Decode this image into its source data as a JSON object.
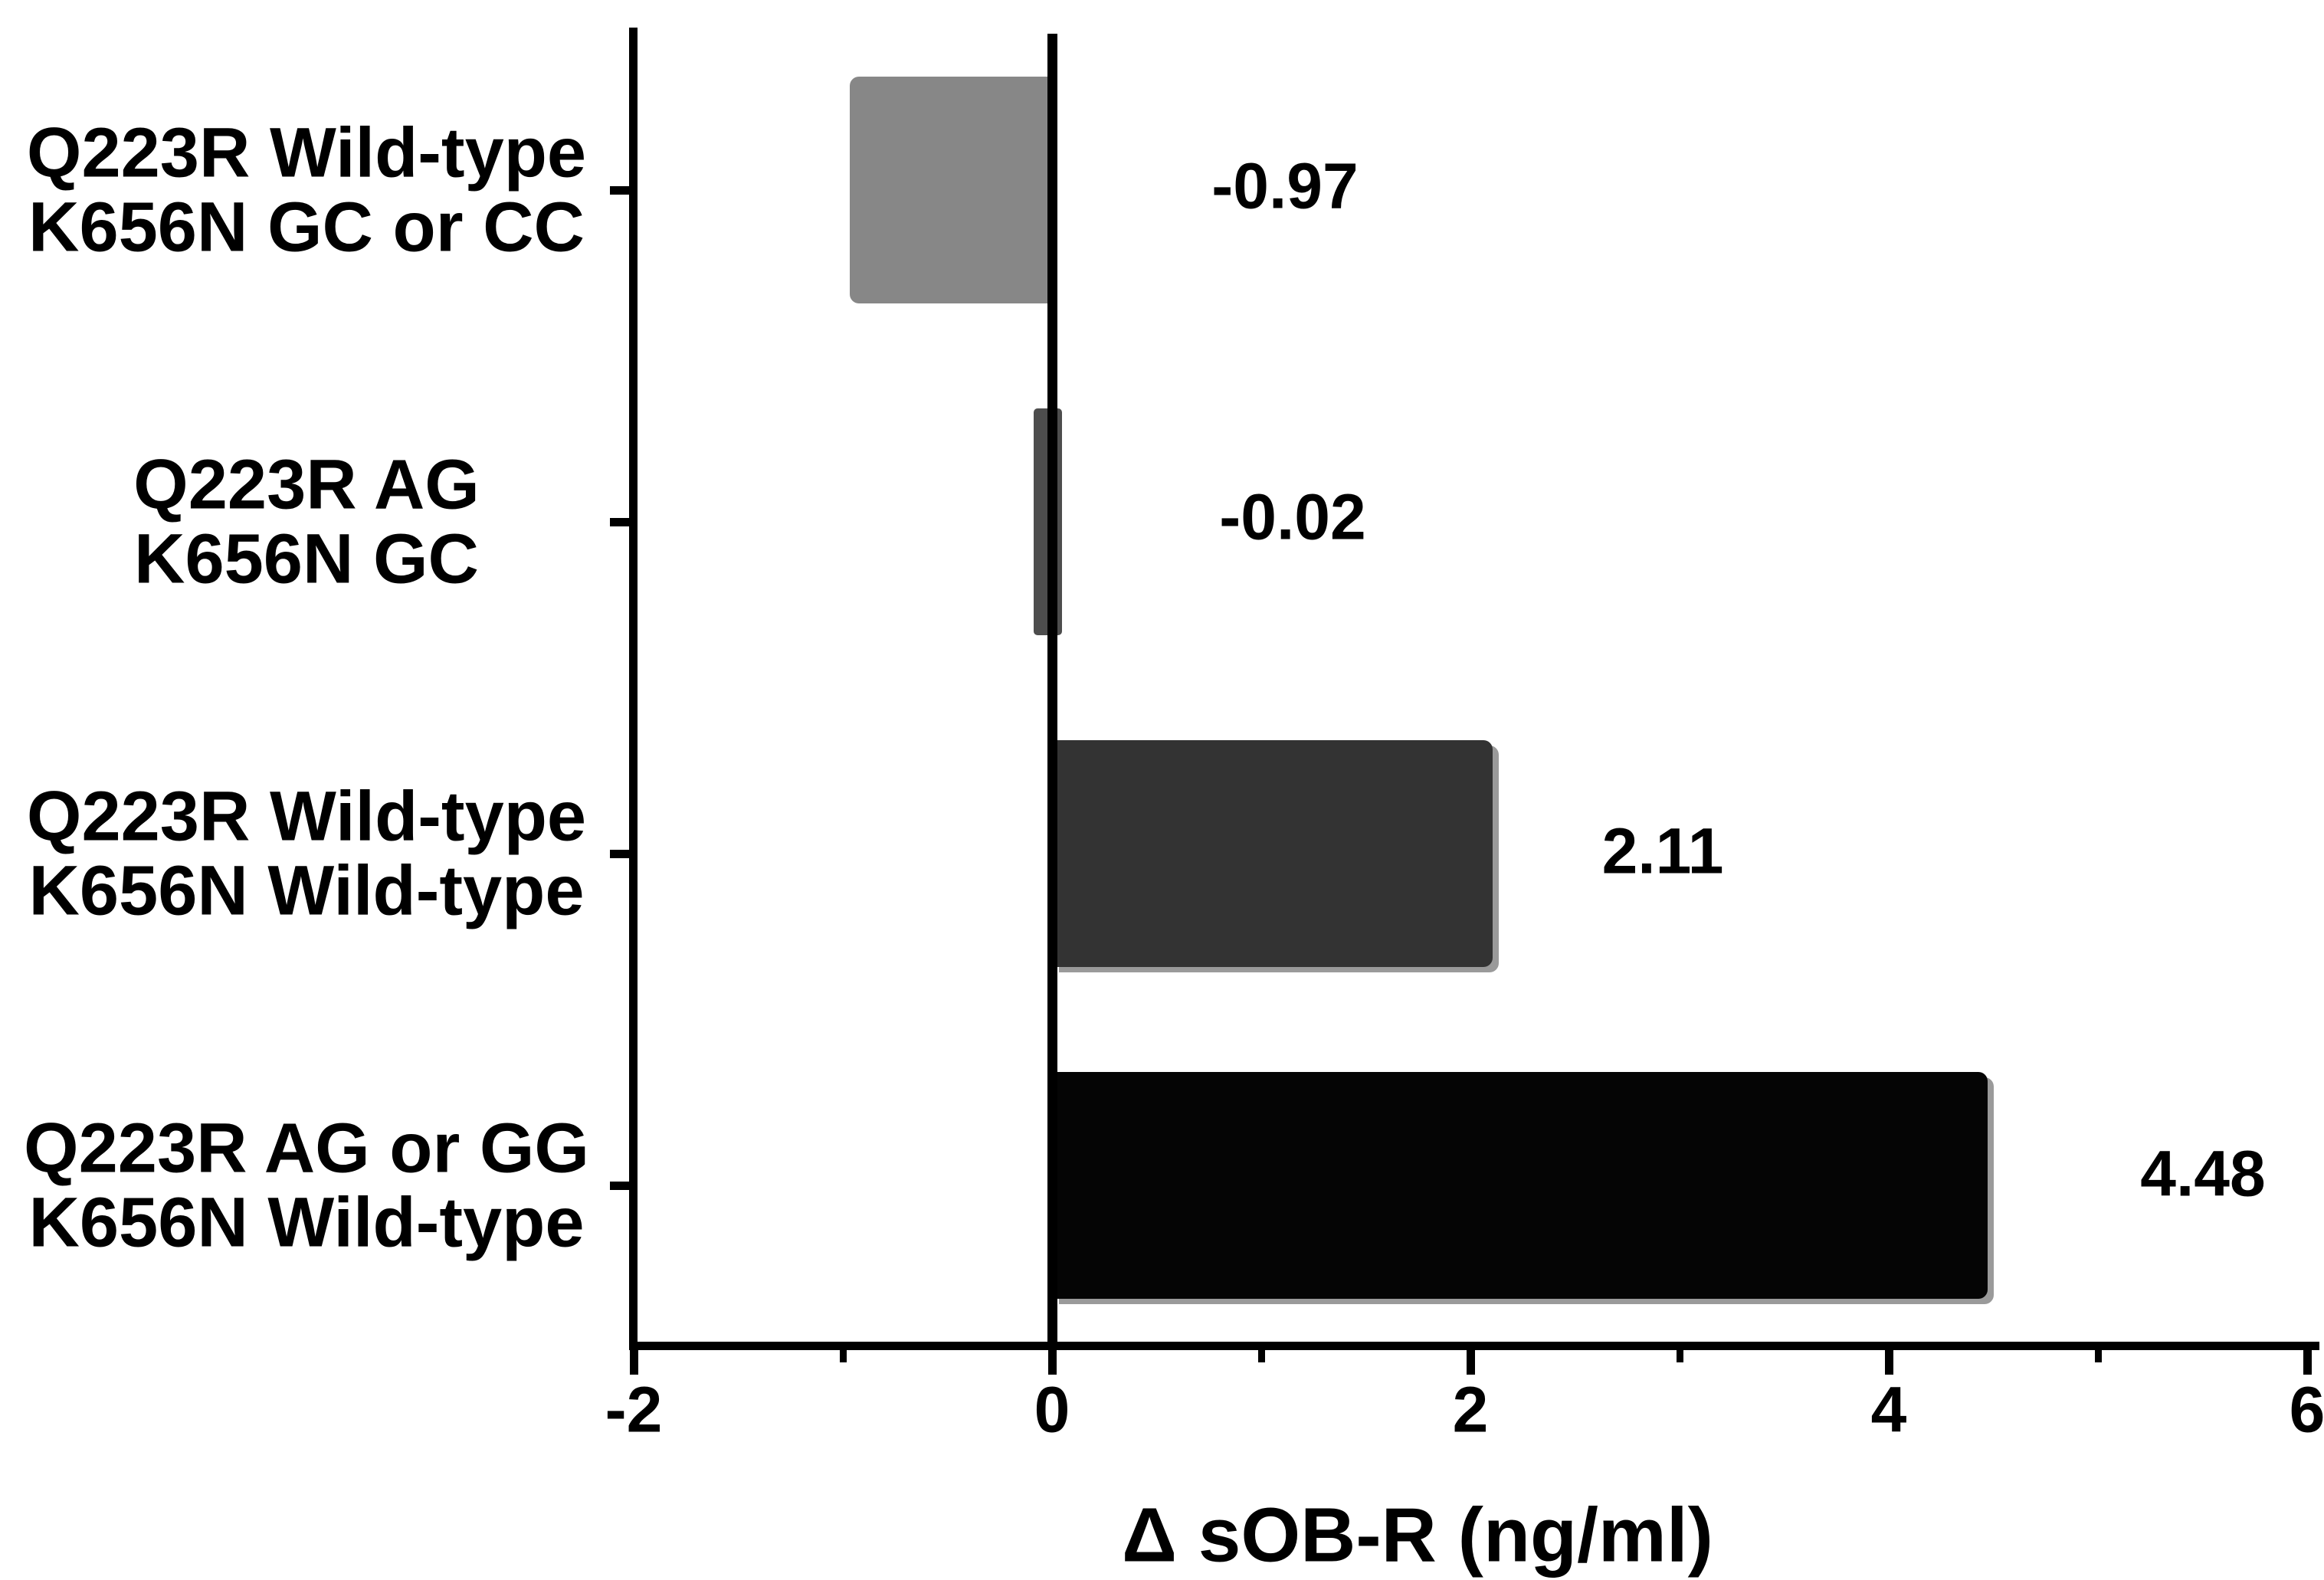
{
  "chart_data": {
    "type": "bar",
    "orientation": "horizontal",
    "xlabel": "Δ sOB-R (ng/ml)",
    "xlim": [
      -2,
      6
    ],
    "x_major_ticks": [
      -2,
      0,
      2,
      4,
      6
    ],
    "x_tick_labels": [
      "-2",
      "0",
      "2",
      "4",
      "6"
    ],
    "x_minor_ticks": [
      -1,
      1,
      3,
      5
    ],
    "grid": false,
    "legend": false,
    "background_color": "#ffffff",
    "axis_color": "#000000",
    "categories": [
      {
        "line1": "Q223R Wild-type",
        "line2": "K656N GC or CC"
      },
      {
        "line1": "Q223R AG",
        "line2": "K656N GC"
      },
      {
        "line1": "Q223R Wild-type",
        "line2": "K656N Wild-type"
      },
      {
        "line1": "Q223R AG or GG",
        "line2": "K656N Wild-type"
      }
    ],
    "values": [
      -0.97,
      -0.02,
      2.11,
      4.48
    ],
    "value_labels": [
      "-0.97",
      "-0.02",
      "2.11",
      "4.48"
    ],
    "bar_colors": [
      "#878787",
      "#4d4d4d",
      "#333333",
      "#050505"
    ]
  }
}
